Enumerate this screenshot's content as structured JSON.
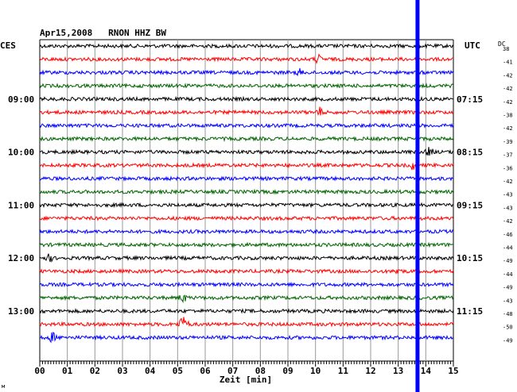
{
  "chart_data": {
    "type": "line",
    "title": "Apr15,2008   RNON HHZ BW",
    "left_axis_label": "CES",
    "right_axis_label": "UTC",
    "dc_label": "DC",
    "xlabel": "Zeit [min]",
    "xlim": [
      0,
      15
    ],
    "x_ticks": [
      "00",
      "01",
      "02",
      "03",
      "04",
      "05",
      "06",
      "07",
      "08",
      "09",
      "10",
      "11",
      "12",
      "13",
      "14",
      "15"
    ],
    "left_time_labels": [
      {
        "row": 4,
        "label": "09:00"
      },
      {
        "row": 8,
        "label": "10:00"
      },
      {
        "row": 12,
        "label": "11:00"
      },
      {
        "row": 16,
        "label": "12:00"
      },
      {
        "row": 20,
        "label": "13:00"
      }
    ],
    "right_time_labels": [
      {
        "row": 4,
        "label": "07:15"
      },
      {
        "row": 8,
        "label": "08:15"
      },
      {
        "row": 12,
        "label": "09:15"
      },
      {
        "row": 16,
        "label": "10:15"
      },
      {
        "row": 20,
        "label": "11:15"
      }
    ],
    "dc_offsets": [
      "38",
      "-41",
      "-42",
      "-42",
      "-42",
      "-38",
      "-42",
      "-39",
      "-37",
      "-36",
      "-42",
      "-43",
      "-43",
      "-42",
      "-46",
      "-44",
      "-49",
      "-44",
      "-49",
      "-43",
      "-48",
      "-50",
      "-49"
    ],
    "series_colors": [
      "#000000",
      "#ff0000",
      "#0000ff",
      "#006400"
    ],
    "marker": {
      "minute": 13.7,
      "color": "#0000ff"
    },
    "corner_mark": "м"
  }
}
